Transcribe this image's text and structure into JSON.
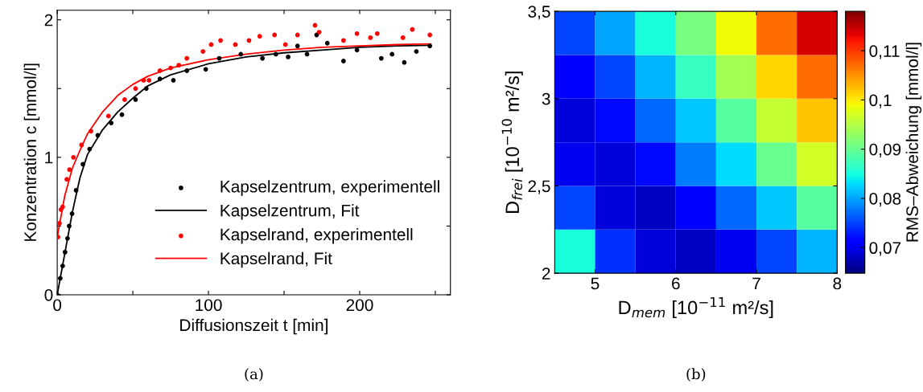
{
  "chart_data": [
    {
      "type": "line",
      "xlabel": "Diffusionszeit t [min]",
      "ylabel": "Konzentration c [mmol/l]",
      "xlim": [
        0,
        260
      ],
      "ylim": [
        0,
        2.07
      ],
      "xticks": [
        0,
        {
          "value": 50,
          "label": null
        },
        100,
        {
          "value": 150,
          "label": null
        },
        200,
        {
          "value": 250,
          "label": null
        }
      ],
      "yticks": [
        0,
        {
          "value": 0.5,
          "label": null
        },
        1,
        {
          "value": 1.5,
          "label": null
        },
        2
      ],
      "grid": false,
      "legend": "bottom right",
      "annotations": [
        "(a)"
      ],
      "series": [
        {
          "name": "Kapselzentrum, experimentell",
          "type": "scatter",
          "marker": "circle",
          "color": "#000000",
          "x": [
            0,
            2,
            3.6,
            5.2,
            6.8,
            7.9,
            9.8,
            12.5,
            17,
            21.4,
            26.8,
            35.7,
            42.8,
            51.8,
            58.9,
            67.9,
            76.8,
            85.7,
            98.2,
            107.1,
            121.4,
            135.7,
            144.6,
            152.7,
            158.9,
            165.2,
            171.5,
            178.6,
            189.3,
            198.2,
            214.3,
            221.4,
            229.5,
            237.5,
            246.4
          ],
          "values": [
            0,
            0.12,
            0.21,
            0.31,
            0.41,
            0.5,
            0.59,
            0.76,
            0.95,
            1.06,
            1.16,
            1.25,
            1.31,
            1.42,
            1.5,
            1.57,
            1.56,
            1.63,
            1.64,
            1.72,
            1.75,
            1.72,
            1.75,
            1.73,
            1.81,
            1.75,
            1.89,
            1.83,
            1.7,
            1.78,
            1.72,
            1.75,
            1.69,
            1.77,
            1.81
          ]
        },
        {
          "name": "Kapselzentrum, Fit",
          "type": "line",
          "marker": "none",
          "line_style": "solid",
          "color": "#000000",
          "x": [
            0,
            5,
            10,
            15,
            20,
            30,
            40,
            50,
            60,
            75,
            100,
            125,
            150,
            175,
            200,
            225,
            247
          ],
          "values": [
            0,
            0.3,
            0.6,
            0.85,
            1.02,
            1.2,
            1.33,
            1.43,
            1.52,
            1.6,
            1.68,
            1.73,
            1.76,
            1.78,
            1.8,
            1.81,
            1.815
          ]
        },
        {
          "name": "Kapselrand, experimentell",
          "type": "scatter",
          "marker": "circle",
          "color": "#ff0000",
          "x": [
            0.5,
            1.5,
            2.5,
            3.6,
            6.3,
            8.1,
            10.7,
            16.1,
            22.3,
            33.9,
            44.6,
            51.8,
            57.1,
            60.7,
            67.9,
            75,
            80.4,
            85.7,
            96.4,
            101.8,
            108,
            117.8,
            126.8,
            133.9,
            143.7,
            150.9,
            158.9,
            170.5,
            173.2,
            189.3,
            198.2,
            207.1,
            211.6,
            228.6,
            234.8,
            246.4
          ],
          "values": [
            0.42,
            0.52,
            0.62,
            0.64,
            0.84,
            0.91,
            1,
            1.09,
            1.19,
            1.3,
            1.42,
            1.5,
            1.56,
            1.56,
            1.63,
            1.65,
            1.67,
            1.72,
            1.77,
            1.82,
            1.85,
            1.82,
            1.85,
            1.88,
            1.89,
            1.82,
            1.89,
            1.96,
            1.91,
            1.85,
            1.9,
            1.87,
            1.9,
            1.87,
            1.93,
            1.89
          ]
        },
        {
          "name": "Kapselrand, Fit",
          "type": "line",
          "marker": "none",
          "line_style": "solid",
          "color": "#ff0000",
          "x": [
            0,
            5,
            10,
            15,
            20,
            30,
            40,
            50,
            60,
            75,
            100,
            125,
            150,
            175,
            200,
            225,
            247
          ],
          "values": [
            0.42,
            0.72,
            0.92,
            1.05,
            1.17,
            1.33,
            1.45,
            1.53,
            1.59,
            1.65,
            1.71,
            1.75,
            1.78,
            1.8,
            1.81,
            1.82,
            1.825
          ]
        }
      ]
    },
    {
      "type": "heatmap",
      "xlabel": "D$_{mem}$ [10$^{−11}$ m²/s]",
      "ylabel": "D$_{frei}$ [10$^{−10}$ m²/s]",
      "clabel": "RMS–Abweichung [mmol/l]",
      "annotations": [
        "(b)"
      ],
      "xlim": [
        4.5,
        8
      ],
      "ylim": [
        2,
        3.5
      ],
      "xticks": [
        5,
        6,
        7,
        8
      ],
      "yticks": [
        2,
        {
          "value": 2.5,
          "label": "2,5"
        },
        3,
        {
          "value": 3.5,
          "label": "3,5"
        }
      ],
      "x": [
        4.75,
        5.25,
        5.75,
        6.25,
        6.75,
        7.25,
        7.75
      ],
      "y": [
        3.375,
        3.125,
        2.875,
        2.625,
        2.375,
        2.125
      ],
      "clim": [
        0.0648,
        0.118
      ],
      "cticks": [
        {
          "value": 0.07,
          "label": "0,07"
        },
        {
          "value": 0.08,
          "label": "0,08"
        },
        {
          "value": 0.09,
          "label": "0,09"
        },
        {
          "value": 0.1,
          "label": "0,1"
        },
        {
          "value": 0.11,
          "label": "0,11"
        }
      ],
      "cells": [
        [
          0.075,
          0.08,
          0.085,
          0.091,
          0.099,
          0.107,
          0.114
        ],
        [
          0.071,
          0.075,
          0.081,
          0.087,
          0.094,
          0.101,
          0.107
        ],
        [
          0.069,
          0.072,
          0.077,
          0.082,
          0.089,
          0.096,
          0.102
        ],
        [
          0.07,
          0.069,
          0.072,
          0.078,
          0.083,
          0.09,
          0.097
        ],
        [
          0.075,
          0.069,
          0.068,
          0.071,
          0.077,
          0.082,
          0.089
        ],
        [
          0.085,
          0.074,
          0.069,
          0.068,
          0.07,
          0.075,
          0.081
        ]
      ]
    }
  ]
}
